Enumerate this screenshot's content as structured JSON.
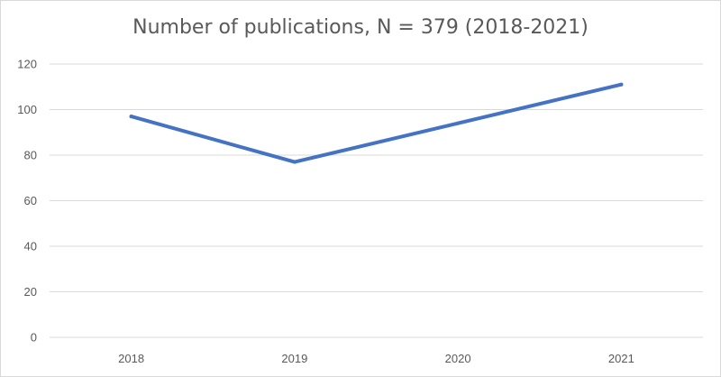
{
  "chart_data": {
    "type": "line",
    "title": "Number of publications, N = 379 (2018-2021)",
    "categories": [
      "2018",
      "2019",
      "2020",
      "2021"
    ],
    "series": [
      {
        "values": [
          97,
          77,
          94,
          111
        ]
      }
    ],
    "ylim": [
      0,
      120
    ],
    "yticks": [
      0,
      20,
      40,
      60,
      80,
      100,
      120
    ],
    "grid": true,
    "legend": "none",
    "colors": {
      "line": "#4472c4",
      "grid": "#d9d9d9",
      "text": "#595959"
    }
  }
}
